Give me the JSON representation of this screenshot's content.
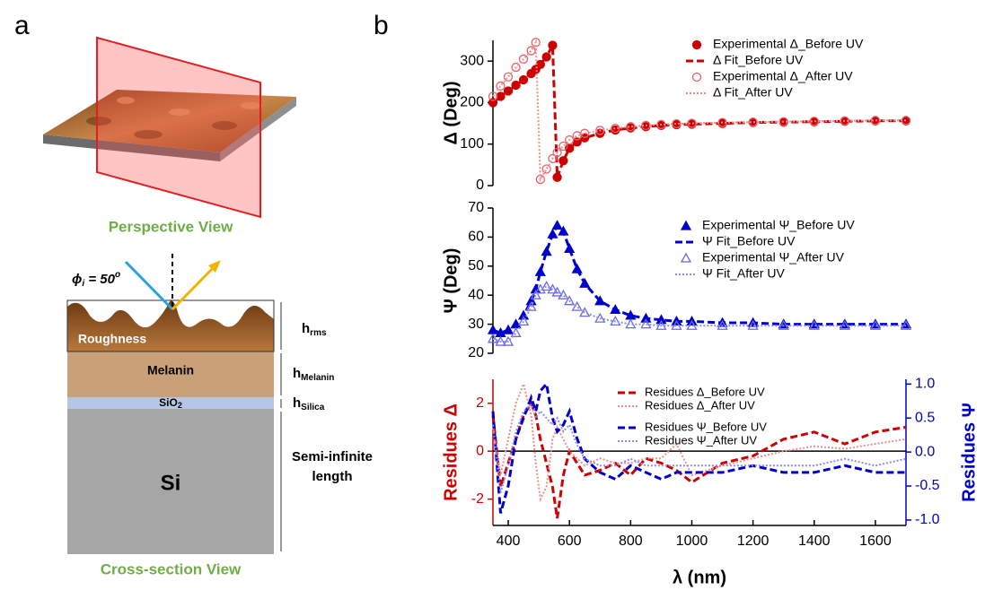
{
  "panel_a": {
    "label": "a",
    "perspective_caption": "Perspective View",
    "cross_section_caption": "Cross-section View",
    "angle": {
      "main": "ϕ",
      "sub": "i",
      "eq": " = 50",
      "sup": "o"
    },
    "roughness": "Roughness",
    "melanin": "Melanin",
    "silica": {
      "main": "SiO",
      "sub": "2"
    },
    "si": "Si",
    "h_rms": {
      "main": "h",
      "sub": "rms"
    },
    "h_melanin": {
      "main": "h",
      "sub": "Melanin"
    },
    "h_silica": {
      "main": "h",
      "sub": "Silica"
    },
    "substrate_note": [
      "Semi-infinite",
      "length"
    ]
  },
  "panel_b_label": "b",
  "chart_data": [
    {
      "type": "line",
      "ylabel": "Δ (Deg)",
      "legend": "upper right",
      "x": [
        350,
        375,
        400,
        425,
        450,
        475,
        490,
        505,
        525,
        545,
        560,
        580,
        600,
        625,
        650,
        700,
        750,
        800,
        850,
        900,
        950,
        1000,
        1100,
        1200,
        1300,
        1400,
        1500,
        1600,
        1700
      ],
      "xlim": [
        350,
        1700
      ],
      "ylim": [
        0,
        350
      ],
      "yticks": [
        0,
        100,
        200,
        300
      ],
      "series": [
        {
          "name": "Experimental Δ_Before UV",
          "color": "#cc0000",
          "marker": "filled-circle",
          "values": [
            200,
            215,
            228,
            242,
            255,
            270,
            280,
            292,
            310,
            338,
            20,
            60,
            90,
            105,
            115,
            126,
            134,
            139,
            142,
            145,
            147,
            148,
            150,
            152,
            153,
            154,
            155,
            156,
            156
          ]
        },
        {
          "name": "Δ Fit_Before UV",
          "color": "#cc0000",
          "dash": "dashed",
          "values": [
            200,
            215,
            228,
            242,
            255,
            270,
            280,
            292,
            310,
            338,
            20,
            60,
            90,
            105,
            115,
            126,
            134,
            139,
            142,
            145,
            147,
            148,
            150,
            152,
            153,
            154,
            155,
            156,
            156
          ]
        },
        {
          "name": "Experimental Δ_After UV",
          "color": "#e8606a",
          "marker": "open-circle",
          "values": [
            215,
            240,
            262,
            285,
            305,
            325,
            345,
            15,
            40,
            65,
            80,
            95,
            110,
            120,
            126,
            133,
            138,
            142,
            145,
            147,
            149,
            150,
            152,
            153,
            154,
            155,
            156,
            157,
            157
          ]
        },
        {
          "name": "Δ Fit_After UV",
          "color": "#f08c8c",
          "dash": "dotted",
          "values": [
            215,
            240,
            262,
            285,
            305,
            325,
            345,
            15,
            40,
            65,
            80,
            95,
            110,
            120,
            126,
            133,
            138,
            142,
            145,
            147,
            149,
            150,
            152,
            153,
            154,
            155,
            156,
            157,
            157
          ]
        }
      ]
    },
    {
      "type": "line",
      "ylabel": "Ψ (Deg)",
      "legend": "upper right",
      "x": [
        350,
        375,
        400,
        425,
        450,
        475,
        490,
        505,
        525,
        545,
        560,
        580,
        600,
        625,
        650,
        700,
        750,
        800,
        850,
        900,
        950,
        1000,
        1100,
        1200,
        1300,
        1400,
        1500,
        1600,
        1700
      ],
      "xlim": [
        350,
        1700
      ],
      "ylim": [
        20,
        70
      ],
      "yticks": [
        20,
        30,
        40,
        50,
        60,
        70
      ],
      "series": [
        {
          "name": "Experimental Ψ_Before UV",
          "color": "#0000cc",
          "marker": "filled-triangle",
          "values": [
            28,
            27,
            28,
            30,
            33,
            38,
            42,
            48,
            55,
            61,
            64,
            62,
            56,
            49,
            44,
            38,
            35,
            33,
            32,
            31.5,
            31,
            31,
            30.5,
            30.5,
            30,
            30,
            30,
            30,
            30
          ]
        },
        {
          "name": "Ψ Fit_Before UV",
          "color": "#0000cc",
          "dash": "dashed",
          "values": [
            28,
            27,
            28,
            30,
            33,
            38,
            42,
            48,
            55,
            61,
            64,
            62,
            56,
            49,
            44,
            38,
            35,
            33,
            32,
            31.5,
            31,
            31,
            30.5,
            30.5,
            30,
            30,
            30,
            30,
            30
          ]
        },
        {
          "name": "Experimental Ψ_After UV",
          "color": "#6a6ae6",
          "marker": "open-triangle",
          "values": [
            25,
            24,
            24,
            27,
            31,
            36,
            40,
            42,
            43,
            42,
            41,
            40,
            38,
            36,
            34,
            32,
            31,
            30,
            30,
            29.5,
            29.5,
            29.5,
            29.5,
            29.5,
            29.5,
            29.5,
            29.5,
            29.5,
            29.5
          ]
        },
        {
          "name": "Ψ Fit_After UV",
          "color": "#8c8cf0",
          "dash": "dotted",
          "values": [
            25,
            24,
            24,
            27,
            31,
            36,
            40,
            42,
            43,
            42,
            41,
            40,
            38,
            36,
            34,
            32,
            31,
            30,
            30,
            29.5,
            29.5,
            29.5,
            29.5,
            29.5,
            29.5,
            29.5,
            29.5,
            29.5,
            29.5
          ]
        }
      ]
    },
    {
      "type": "line",
      "ylabel": "Residues Δ",
      "y2label": "Residues Ψ",
      "xlabel": "λ (nm)",
      "ycolor": "#cc0000",
      "y2color": "#0000cc",
      "legend": "upper right",
      "zero_line": true,
      "x": [
        350,
        375,
        400,
        425,
        450,
        475,
        490,
        505,
        525,
        545,
        560,
        580,
        600,
        625,
        650,
        700,
        750,
        800,
        850,
        900,
        950,
        1000,
        1100,
        1200,
        1300,
        1400,
        1500,
        1600,
        1700
      ],
      "xlim": [
        350,
        1700
      ],
      "xticks": [
        400,
        600,
        800,
        1000,
        1200,
        1400,
        1600
      ],
      "ylim": [
        -3.1,
        3.0
      ],
      "yticks": [
        -2,
        0,
        2
      ],
      "y2lim": [
        -1.08,
        1.07
      ],
      "y2ticks": [
        {
          "value": -1,
          "label": "-1.0"
        },
        -0.5,
        {
          "value": 0,
          "label": "0.0"
        },
        0.5,
        {
          "value": 1,
          "label": "1.0"
        }
      ],
      "series": [
        {
          "name": "Residues Δ_Before UV",
          "color": "#cc0000",
          "dash": "dashed",
          "values": [
            1.5,
            -1.5,
            -0.5,
            0.5,
            1.5,
            2,
            1.5,
            0.5,
            -0.5,
            -1.5,
            -2.8,
            -1,
            0,
            -0.5,
            -1,
            -0.8,
            -0.5,
            -1,
            -0.3,
            -0.5,
            -0.8,
            -1.3,
            -0.5,
            -0.2,
            0.5,
            0.8,
            0.3,
            0.8,
            1.0
          ]
        },
        {
          "name": "Residues Δ_After UV",
          "color": "#f08c8c",
          "dash": "dotted",
          "values": [
            1.0,
            -1.0,
            0.5,
            2.0,
            2.8,
            1.5,
            -0.5,
            -2.0,
            -1.5,
            0.5,
            1.0,
            0.5,
            0,
            -0.3,
            -0.6,
            -0.3,
            -0.5,
            -0.5,
            -0.3,
            -0.3,
            0.3,
            -1.0,
            -0.6,
            -0.3,
            0,
            0.2,
            0.1,
            0.3,
            0.5
          ]
        },
        {
          "name": "Residues Ψ_Before UV",
          "color": "#0000cc",
          "dash": "dashed",
          "axis": "y2",
          "values": [
            0.6,
            -0.9,
            -0.5,
            0.2,
            0.5,
            0.8,
            0.6,
            0.9,
            1.0,
            0.5,
            0.3,
            0.4,
            0.6,
            0.2,
            -0.1,
            -0.3,
            -0.4,
            -0.2,
            -0.3,
            -0.4,
            -0.3,
            -0.3,
            -0.3,
            -0.2,
            -0.3,
            -0.3,
            -0.2,
            -0.3,
            -0.3
          ]
        },
        {
          "name": "Residues Ψ_After UV",
          "color": "#8c8cf0",
          "dash": "dotted",
          "axis": "y2",
          "values": [
            0.4,
            -0.6,
            -0.2,
            0.3,
            0.6,
            0.7,
            0.5,
            0.6,
            0.5,
            0.4,
            0.5,
            0.3,
            0.4,
            0.1,
            -0.1,
            -0.2,
            -0.2,
            -0.1,
            -0.2,
            -0.2,
            -0.2,
            -0.2,
            -0.2,
            -0.2,
            -0.2,
            -0.2,
            -0.1,
            -0.2,
            -0.1
          ]
        }
      ]
    }
  ]
}
